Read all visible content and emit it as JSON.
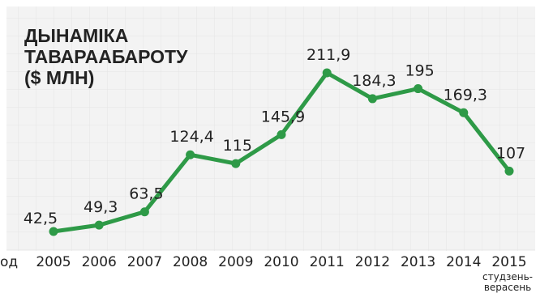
{
  "chart_data": {
    "type": "line",
    "title_lines": [
      "ДЫНАМІКА",
      "ТАВАРААБАРОТУ",
      "($ МЛН)"
    ],
    "x_axis_label": "од",
    "categories": [
      "2005",
      "2006",
      "2007",
      "2008",
      "2009",
      "2010",
      "2011",
      "2012",
      "2013",
      "2014",
      "2015"
    ],
    "category_note_lines": [
      "студзень-",
      "верасень"
    ],
    "color": "#2e9a47",
    "values": [
      42.5,
      49.3,
      63.5,
      124.4,
      115,
      145.9,
      211.9,
      184.3,
      195,
      169.3,
      107
    ],
    "value_labels": [
      "42,5",
      "49,3",
      "63,5",
      "124,4",
      "115",
      "145,9",
      "211,9",
      "184,3",
      "195",
      "169,3",
      "107"
    ]
  }
}
